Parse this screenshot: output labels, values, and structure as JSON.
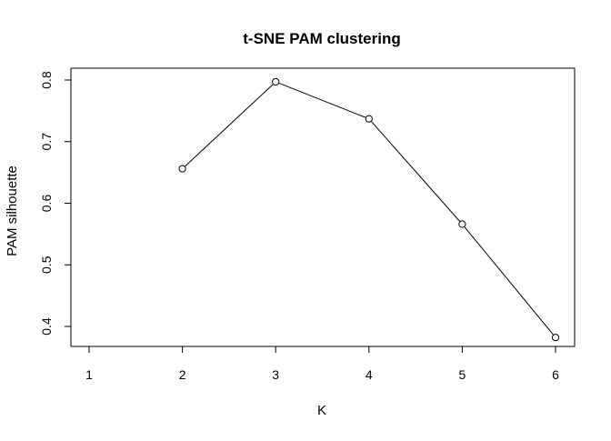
{
  "chart_data": {
    "type": "line",
    "title": "t-SNE PAM clustering",
    "xlabel": "K",
    "ylabel": "PAM silhouette",
    "x": [
      2,
      3,
      4,
      5,
      6
    ],
    "series": [
      {
        "values": [
          0.656,
          0.797,
          0.737,
          0.566,
          0.382
        ]
      }
    ],
    "xlim": [
      1,
      6
    ],
    "ylim": [
      0.4,
      0.8
    ],
    "x_ticks": [
      "1",
      "2",
      "3",
      "4",
      "5",
      "6"
    ],
    "y_ticks": [
      "0.4",
      "0.5",
      "0.6",
      "0.7",
      "0.8"
    ],
    "marker": "open-circle",
    "grid": false,
    "colors": {
      "line": "#000000",
      "background": "#ffffff"
    }
  }
}
